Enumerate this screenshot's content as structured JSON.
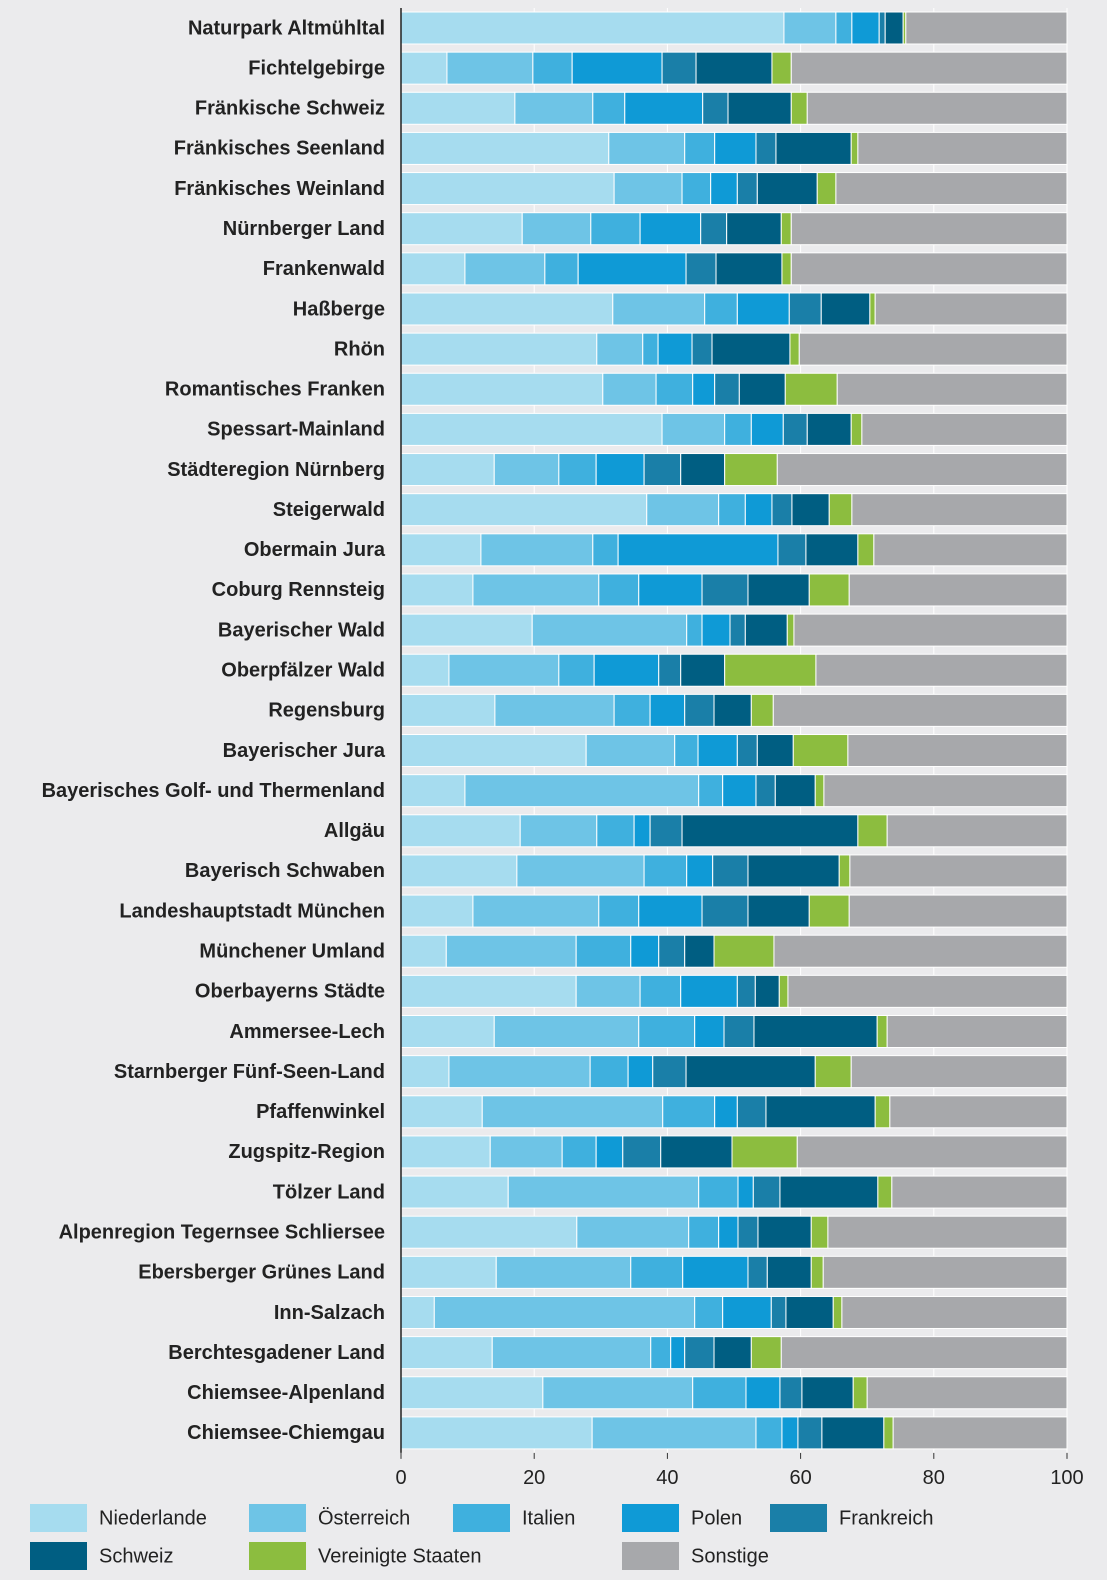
{
  "chart_data": {
    "type": "stacked-barh",
    "categories": [
      "Naturpark Altmühltal",
      "Fichtelgebirge",
      "Fränkische Schweiz",
      "Fränkisches Seenland",
      "Fränkisches Weinland",
      "Nürnberger Land",
      "Frankenwald",
      "Haßberge",
      "Rhön",
      "Romantisches Franken",
      "Spessart-Mainland",
      "Städteregion Nürnberg",
      "Steigerwald",
      "Obermain Jura",
      "Coburg Rennsteig",
      "Bayerischer Wald",
      "Oberpfälzer Wald",
      "Regensburg",
      "Bayerischer Jura",
      "Bayerisches Golf- und Thermenland",
      "Allgäu",
      "Bayerisch Schwaben",
      "Landeshauptstadt München",
      "Münchener Umland",
      "Oberbayerns Städte",
      "Ammersee-Lech",
      "Starnberger Fünf-Seen-Land",
      "Pfaffenwinkel",
      "Zugspitz-Region",
      "Tölzer Land",
      "Alpenregion Tegernsee Schliersee",
      "Ebersberger Grünes Land",
      "Inn-Salzach",
      "Berchtesgadener Land",
      "Chiemsee-Alpenland",
      "Chiemsee-Chiemgau"
    ],
    "series": [
      {
        "name": "Niederlande",
        "color": "#a6dcef",
        "values": [
          57.5,
          6.9,
          17.1,
          31.2,
          32.0,
          18.2,
          9.6,
          31.8,
          29.4,
          30.3,
          39.2,
          14.0,
          36.9,
          12.0,
          10.8,
          19.7,
          7.2,
          14.1,
          27.8,
          9.6,
          17.9,
          17.4,
          10.8,
          6.8,
          26.3,
          14.0,
          7.2,
          12.2,
          13.4,
          16.1,
          26.4,
          14.3,
          5.0,
          13.7,
          21.3,
          28.7
        ]
      },
      {
        "name": "Österreich",
        "color": "#6ec4e6",
        "values": [
          7.8,
          12.9,
          11.7,
          11.4,
          10.2,
          10.3,
          12.0,
          13.8,
          6.9,
          8.0,
          9.4,
          9.7,
          10.8,
          16.8,
          18.9,
          23.2,
          16.5,
          17.9,
          13.3,
          35.1,
          11.5,
          19.1,
          18.9,
          19.5,
          9.6,
          21.7,
          21.2,
          27.1,
          10.8,
          28.6,
          16.8,
          20.2,
          39.1,
          23.8,
          22.5,
          24.6
        ]
      },
      {
        "name": "Italien",
        "color": "#3fb0de",
        "values": [
          2.4,
          5.9,
          4.8,
          4.5,
          4.3,
          7.4,
          5.0,
          4.9,
          2.3,
          5.5,
          4.0,
          5.6,
          4.0,
          3.8,
          6.0,
          2.3,
          5.3,
          5.4,
          3.5,
          3.6,
          5.6,
          6.4,
          6.0,
          8.2,
          6.1,
          8.4,
          5.7,
          7.8,
          5.1,
          5.9,
          4.5,
          7.8,
          4.2,
          3.0,
          8.0,
          3.9
        ]
      },
      {
        "name": "Polen",
        "color": "#0f9ad6",
        "values": [
          4.1,
          13.5,
          11.7,
          6.2,
          4.0,
          9.1,
          16.2,
          7.8,
          5.1,
          3.3,
          4.8,
          7.2,
          4.0,
          24.0,
          9.5,
          4.2,
          9.7,
          5.2,
          5.9,
          5.0,
          2.4,
          3.9,
          9.5,
          4.2,
          8.5,
          4.4,
          3.7,
          3.4,
          4.0,
          2.3,
          2.9,
          9.8,
          7.3,
          2.1,
          5.1,
          2.4
        ]
      },
      {
        "name": "Frankreich",
        "color": "#1a7fa8",
        "values": [
          0.9,
          5.1,
          3.8,
          3.0,
          3.0,
          3.9,
          4.5,
          4.8,
          3.0,
          3.7,
          3.6,
          5.5,
          3.0,
          4.2,
          6.9,
          2.3,
          3.3,
          4.4,
          3.0,
          2.9,
          4.8,
          5.3,
          6.9,
          3.9,
          2.7,
          4.5,
          5.0,
          4.3,
          5.7,
          4.0,
          3.0,
          2.9,
          2.2,
          4.4,
          3.3,
          3.6
        ]
      },
      {
        "name": "Schweiz",
        "color": "#005e82",
        "values": [
          2.7,
          11.4,
          9.5,
          11.3,
          9.0,
          8.2,
          9.9,
          7.3,
          11.7,
          6.9,
          6.6,
          6.6,
          5.6,
          7.8,
          9.2,
          6.3,
          6.6,
          5.6,
          5.4,
          6.0,
          26.4,
          13.7,
          9.2,
          4.4,
          3.6,
          18.5,
          19.4,
          16.4,
          10.7,
          14.7,
          8.0,
          6.6,
          7.1,
          5.6,
          7.7,
          9.3
        ]
      },
      {
        "name": "Vereinigte Staaten",
        "color": "#8cbd3f",
        "values": [
          0.4,
          2.9,
          2.4,
          1.0,
          2.8,
          1.5,
          1.4,
          0.8,
          1.4,
          7.8,
          1.6,
          7.9,
          3.4,
          2.4,
          6.0,
          1.0,
          13.7,
          3.3,
          8.2,
          1.3,
          4.4,
          1.6,
          6.0,
          9.0,
          1.3,
          1.5,
          5.4,
          2.2,
          9.8,
          2.1,
          2.5,
          1.8,
          1.3,
          4.5,
          2.1,
          1.4
        ]
      },
      {
        "name": "Sonstige",
        "color": "#a7a8ab",
        "values": [
          24.2,
          41.4,
          39.0,
          31.4,
          34.7,
          41.4,
          41.4,
          28.8,
          40.2,
          34.5,
          30.8,
          43.5,
          32.3,
          29.0,
          32.7,
          41.0,
          37.7,
          44.1,
          32.9,
          36.5,
          27.0,
          32.6,
          32.7,
          44.0,
          41.9,
          27.0,
          32.4,
          26.6,
          40.5,
          26.3,
          35.9,
          36.6,
          33.8,
          42.9,
          30.0,
          26.1
        ]
      }
    ],
    "xlim": [
      0,
      100
    ],
    "xticks": [
      0,
      20,
      40,
      60,
      80,
      100
    ],
    "grid": true
  }
}
